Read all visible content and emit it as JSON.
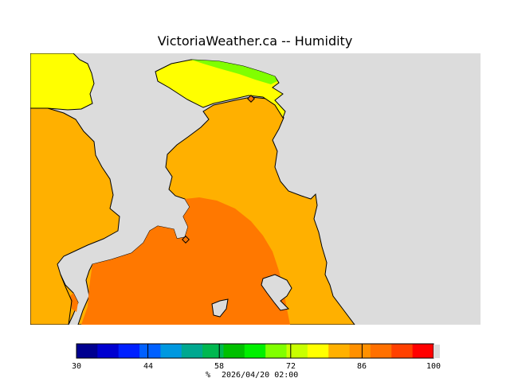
{
  "header": {
    "title": "VictoriaWeather.ca -- Humidity"
  },
  "legend": {
    "ticks": [
      "30",
      "44",
      "58",
      "72",
      "86",
      "100"
    ],
    "unit": "%",
    "timestamp": "2026/04/20 02:00",
    "colors": [
      "#000090",
      "#0000d0",
      "#0020ff",
      "#0060ff",
      "#0098e0",
      "#00a890",
      "#00b850",
      "#00c000",
      "#00f000",
      "#80ff00",
      "#c8ff00",
      "#ffff00",
      "#ffb000",
      "#ff9000",
      "#ff7000",
      "#ff4000",
      "#ff0000"
    ]
  },
  "map": {
    "colors": {
      "land_bg": "#dcdcdc",
      "yellow": "#ffff00",
      "green": "#80ff00",
      "light_orange": "#ffb000",
      "dark_orange": "#ff7800",
      "marker": "#ff7800"
    },
    "markers": [
      "station-victoria-airport",
      "station-victoria-harbour"
    ]
  }
}
